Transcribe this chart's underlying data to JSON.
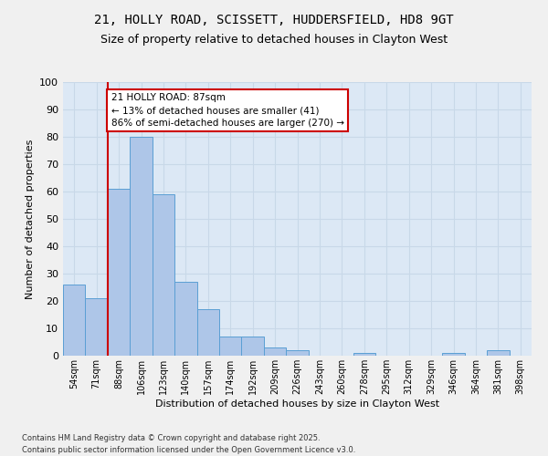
{
  "title_line1": "21, HOLLY ROAD, SCISSETT, HUDDERSFIELD, HD8 9GT",
  "title_line2": "Size of property relative to detached houses in Clayton West",
  "xlabel": "Distribution of detached houses by size in Clayton West",
  "ylabel": "Number of detached properties",
  "categories": [
    "54sqm",
    "71sqm",
    "88sqm",
    "106sqm",
    "123sqm",
    "140sqm",
    "157sqm",
    "174sqm",
    "192sqm",
    "209sqm",
    "226sqm",
    "243sqm",
    "260sqm",
    "278sqm",
    "295sqm",
    "312sqm",
    "329sqm",
    "346sqm",
    "364sqm",
    "381sqm",
    "398sqm"
  ],
  "values": [
    26,
    21,
    61,
    80,
    59,
    27,
    17,
    7,
    7,
    3,
    2,
    0,
    0,
    1,
    0,
    0,
    0,
    1,
    0,
    2,
    0
  ],
  "bar_color": "#aec6e8",
  "bar_edge_color": "#5a9fd4",
  "property_line_bar_index": 2,
  "property_line_color": "#cc0000",
  "annotation_text": "21 HOLLY ROAD: 87sqm\n← 13% of detached houses are smaller (41)\n86% of semi-detached houses are larger (270) →",
  "annotation_box_edgecolor": "#cc0000",
  "ylim": [
    0,
    100
  ],
  "yticks": [
    0,
    10,
    20,
    30,
    40,
    50,
    60,
    70,
    80,
    90,
    100
  ],
  "grid_color": "#c8d8e8",
  "plot_bg_color": "#dce8f5",
  "fig_bg_color": "#f0f0f0",
  "footer_text": "Contains HM Land Registry data © Crown copyright and database right 2025.\nContains public sector information licensed under the Open Government Licence v3.0."
}
